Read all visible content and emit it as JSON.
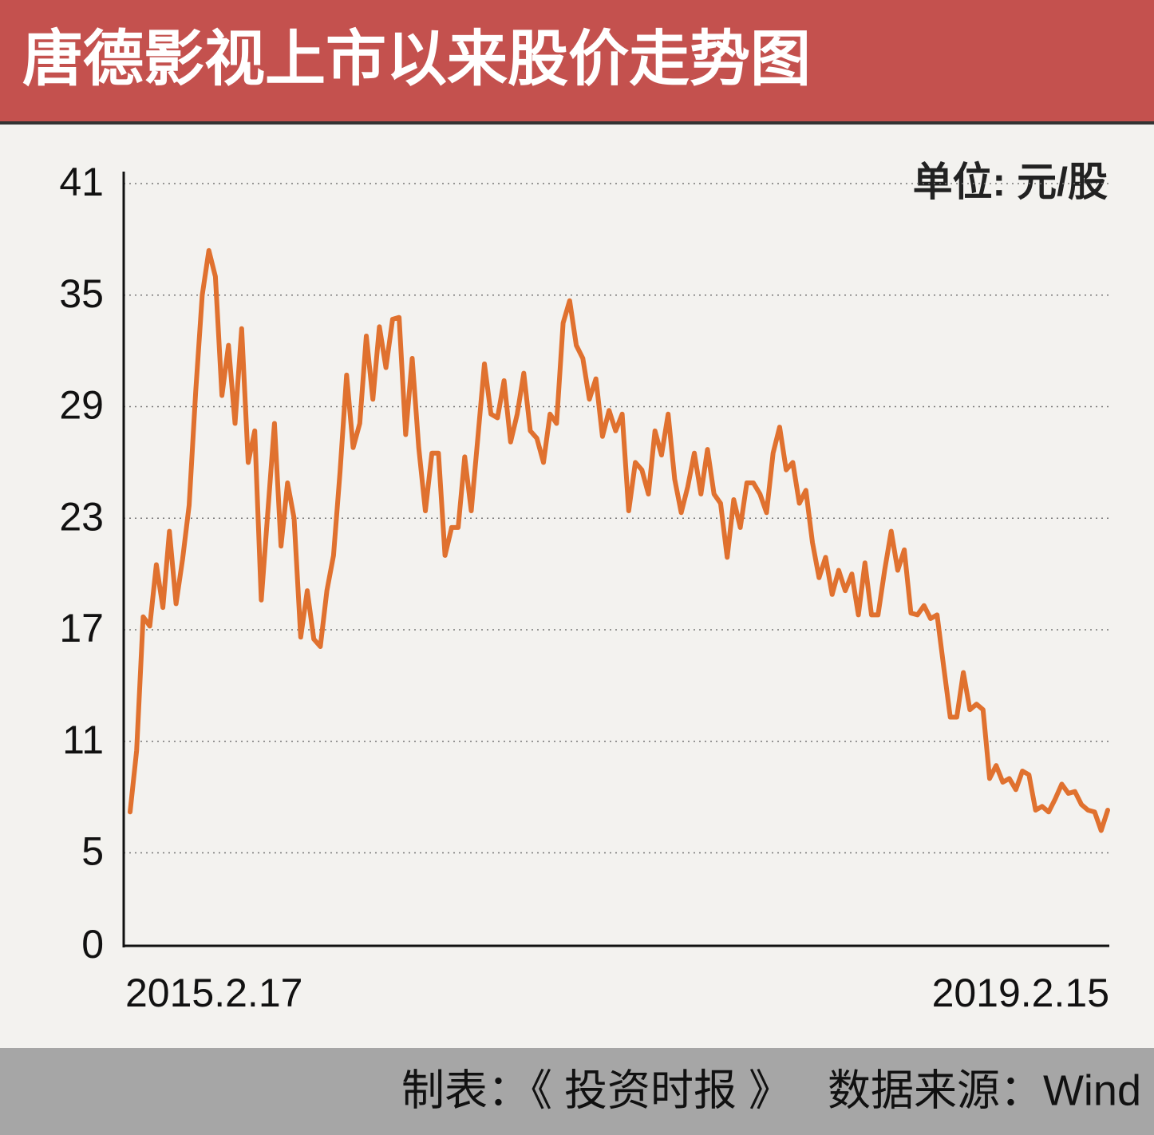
{
  "chart_data": {
    "type": "line",
    "title": "唐德影视上市以来股价走势图",
    "unit": "单位: 元/股",
    "source": "制表：《 投资时报 》   数据来源：Wind",
    "color": "#e0712f",
    "grid": true,
    "ylim": [
      0,
      41
    ],
    "yticks": [
      0,
      5,
      11,
      17,
      23,
      29,
      35,
      41
    ],
    "categories": [
      "2015.2.17",
      null,
      null,
      null,
      null,
      null,
      null,
      null,
      null,
      null,
      null,
      null,
      null,
      null,
      null,
      null,
      null,
      null,
      null,
      null,
      null,
      null,
      null,
      null,
      null,
      null,
      null,
      null,
      null,
      null,
      null,
      null,
      null,
      null,
      null,
      null,
      null,
      null,
      null,
      null,
      null,
      null,
      null,
      null,
      null,
      null,
      null,
      null,
      null,
      null,
      null,
      null,
      null,
      null,
      null,
      null,
      null,
      null,
      null,
      null,
      null,
      null,
      null,
      null,
      null,
      null,
      null,
      null,
      null,
      null,
      null,
      null,
      null,
      null,
      null,
      null,
      null,
      null,
      null,
      null,
      null,
      null,
      null,
      null,
      null,
      null,
      null,
      null,
      null,
      null,
      null,
      null,
      null,
      null,
      null,
      null,
      null,
      null,
      null,
      null,
      null,
      null,
      null,
      null,
      null,
      null,
      null,
      null,
      null,
      null,
      null,
      null,
      null,
      null,
      null,
      null,
      null,
      null,
      null,
      null,
      null,
      null,
      null,
      null,
      null,
      null,
      null,
      null,
      null,
      null,
      null,
      null,
      null,
      null,
      null,
      null,
      null,
      null,
      null,
      null,
      null,
      null,
      null,
      null,
      null,
      null,
      null,
      null,
      null,
      "2019.2.15"
    ],
    "values": [
      7.2,
      10.5,
      17.7,
      17.2,
      20.5,
      18.2,
      22.3,
      18.4,
      20.8,
      23.7,
      29.8,
      35,
      37.4,
      36,
      29.6,
      32.3,
      28.1,
      33.2,
      26,
      27.7,
      18.6,
      23.4,
      28.1,
      21.5,
      24.9,
      23,
      16.6,
      19.1,
      16.5,
      16.1,
      19.1,
      21,
      25.5,
      30.7,
      26.8,
      28.1,
      32.8,
      29.4,
      33.3,
      31.1,
      33.7,
      33.8,
      27.5,
      31.6,
      26.8,
      23.4,
      26.5,
      26.5,
      21,
      22.5,
      22.5,
      26.3,
      23.4,
      27.3,
      31.3,
      28.6,
      28.4,
      30.4,
      27.1,
      28.6,
      30.8,
      27.7,
      27.3,
      26,
      28.6,
      28.1,
      33.5,
      34.7,
      32.3,
      31.6,
      29.4,
      30.5,
      27.4,
      28.8,
      27.7,
      28.6,
      23.4,
      26,
      25.6,
      24.3,
      27.7,
      26.4,
      28.6,
      25.1,
      23.3,
      24.7,
      26.5,
      24.3,
      26.7,
      24.3,
      23.8,
      20.9,
      24,
      22.5,
      24.9,
      24.9,
      24.3,
      23.3,
      26.5,
      27.9,
      25.6,
      26,
      23.8,
      24.5,
      21.7,
      19.8,
      20.9,
      18.9,
      20.2,
      19.1,
      20,
      17.8,
      20.6,
      17.8,
      17.8,
      20.2,
      22.3,
      20.2,
      21.3,
      17.9,
      17.8,
      18.3,
      17.6,
      17.8,
      15,
      12.3,
      12.3,
      14.7,
      12.7,
      13,
      12.7,
      9,
      9.7,
      8.8,
      9,
      8.4,
      9.4,
      9.2,
      7.3,
      7.5,
      7.2,
      7.9,
      8.7,
      8.2,
      8.3,
      7.6,
      7.3,
      7.2,
      6.2,
      7.3
    ]
  }
}
